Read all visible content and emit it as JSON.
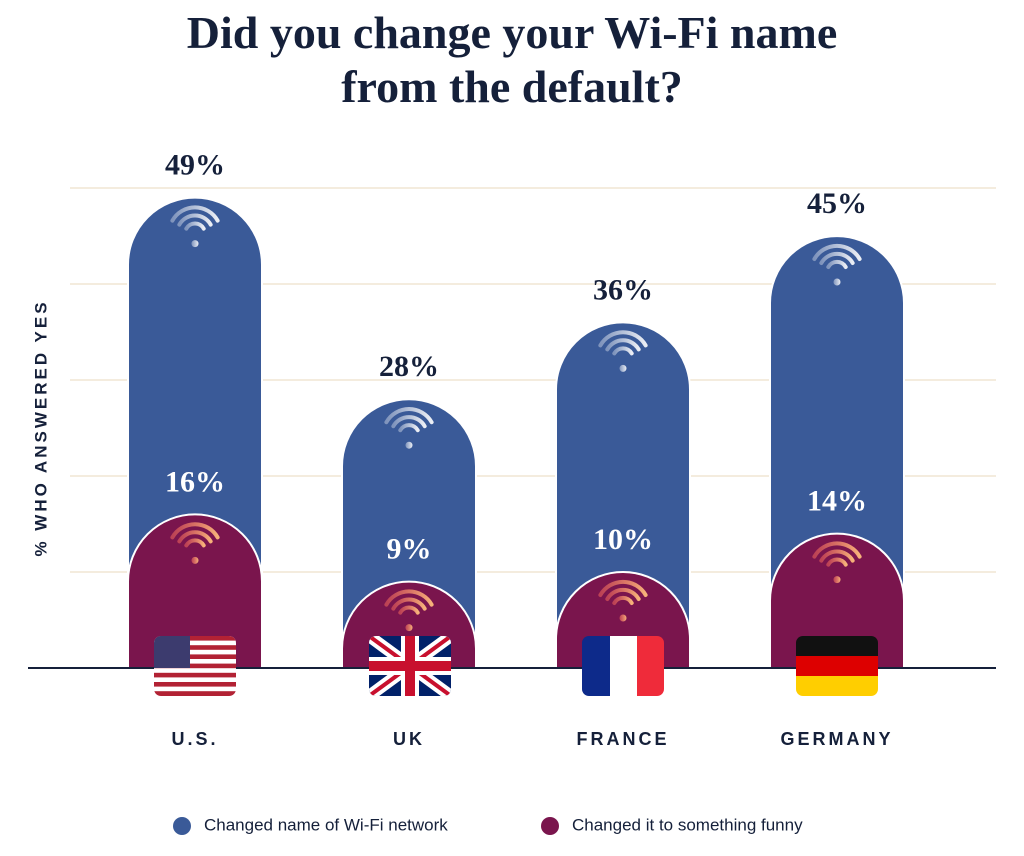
{
  "chart_data": {
    "type": "bar",
    "title": "Did you change your Wi-Fi name from the default?",
    "y_label": "% WHO ANSWERED YES",
    "categories": [
      "U.S.",
      "UK",
      "FRANCE",
      "GERMANY"
    ],
    "series": [
      {
        "name": "Changed name of Wi-Fi network",
        "color": "#3a5a98",
        "values": [
          49,
          28,
          36,
          45
        ],
        "value_labels": [
          "49%",
          "28%",
          "36%",
          "45%"
        ]
      },
      {
        "name": "Changed it to something funny",
        "color": "#7a154d",
        "values": [
          16,
          9,
          10,
          14
        ],
        "value_labels": [
          "16%",
          "9%",
          "10%",
          "14%"
        ]
      }
    ],
    "ylim": [
      0,
      50
    ],
    "yticks": [
      0,
      10,
      20,
      30,
      40,
      50
    ],
    "grid": true
  }
}
